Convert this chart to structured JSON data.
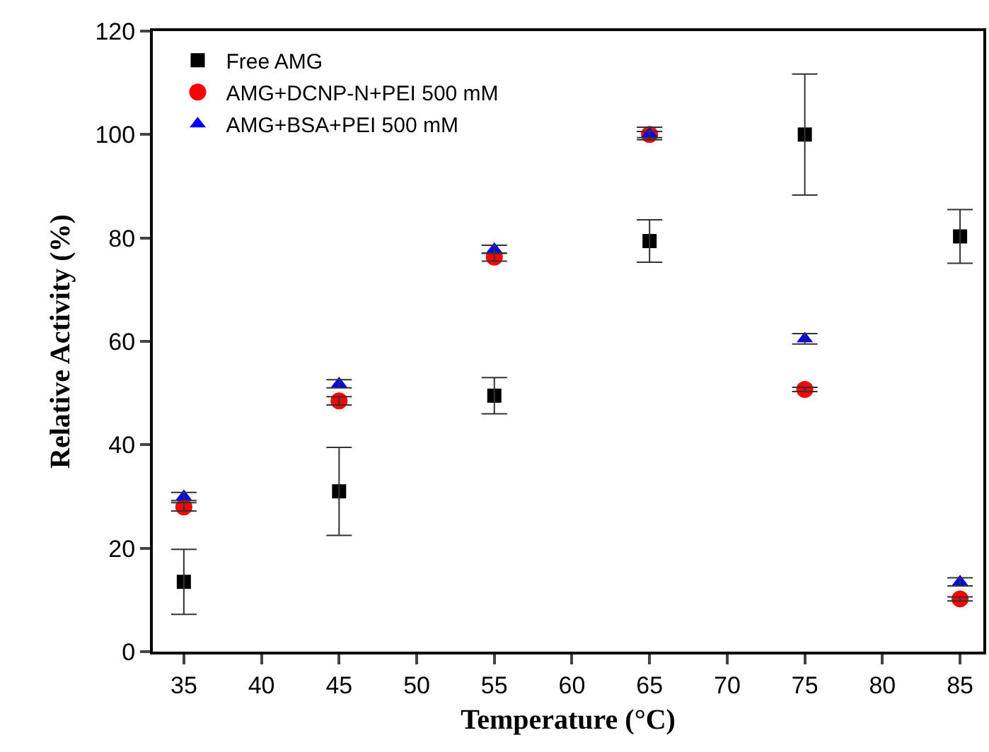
{
  "chart_data": {
    "type": "scatter",
    "xlabel": "Temperature (°C)",
    "ylabel": "Relative Activity (%)",
    "x": [
      35,
      45,
      55,
      65,
      75,
      85
    ],
    "series": [
      {
        "name": "Free AMG",
        "color": "#000000",
        "marker": "square",
        "values": [
          13.5,
          31,
          49.5,
          79.4,
          100,
          80.3
        ],
        "errors": [
          6.3,
          8.5,
          3.5,
          4.1,
          11.7,
          5.2
        ]
      },
      {
        "name": "AMG+DCNP-N+PEI 500 mM",
        "color": "#ff0000",
        "marker": "circle",
        "values": [
          28,
          48.5,
          76.3,
          100,
          50.7,
          10.2
        ],
        "errors": [
          0.8,
          0.8,
          0.8,
          0.6,
          0.4,
          0.4
        ]
      },
      {
        "name": "AMG+BSA+PEI 500 mM",
        "color": "#0000ff",
        "marker": "triangle",
        "values": [
          30,
          51.8,
          77.8,
          100.2,
          60.5,
          13.5
        ],
        "errors": [
          0.8,
          0.8,
          0.8,
          1.2,
          1,
          0.8
        ]
      }
    ],
    "xlim": [
      33,
      86.5
    ],
    "xticks": [
      35,
      40,
      45,
      50,
      55,
      60,
      65,
      70,
      75,
      80,
      85
    ],
    "ylim": [
      0,
      120
    ],
    "yticks": [
      0,
      20,
      40,
      60,
      80,
      100,
      120
    ],
    "legend": "top left"
  }
}
